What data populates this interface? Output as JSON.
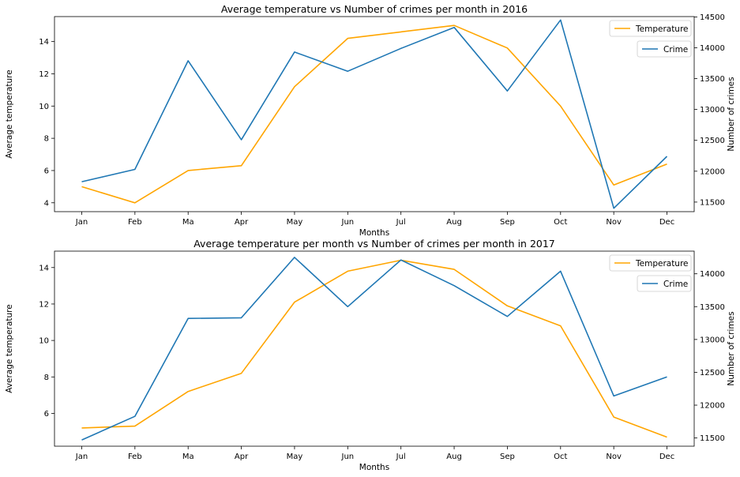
{
  "chart_data": [
    {
      "type": "line",
      "title": "Average temperature vs Number of crimes per month in 2016",
      "xlabel": "Months",
      "ylabel_left": "Average temperature",
      "ylabel_right": "Number of crimes",
      "categories": [
        "Jan",
        "Feb",
        "Ma",
        "Apr",
        "May",
        "Jun",
        "Jul",
        "Aug",
        "Sep",
        "Oct",
        "Nov",
        "Dec"
      ],
      "series": [
        {
          "name": "Temperature",
          "axis": "left",
          "color": "#ffa500",
          "values": [
            5.0,
            4.0,
            6.0,
            6.3,
            11.2,
            14.2,
            14.6,
            15.0,
            13.6,
            10.0,
            5.1,
            6.4
          ]
        },
        {
          "name": "Crime",
          "axis": "right",
          "color": "#1f77b4",
          "values": [
            11830,
            12030,
            13790,
            12510,
            13930,
            13620,
            13990,
            14330,
            13300,
            14450,
            11400,
            12240
          ]
        }
      ],
      "ylim_left": [
        3.45,
        15.55
      ],
      "yticks_left": [
        4,
        6,
        8,
        10,
        12,
        14
      ],
      "ylim_right": [
        11345,
        14505
      ],
      "yticks_right": [
        11500,
        12000,
        12500,
        13000,
        13500,
        14000,
        14500
      ],
      "legend_placement": "top-right",
      "grid": false
    },
    {
      "type": "line",
      "title": "Average temperature per month vs Number of crimes per month in 2017",
      "xlabel": "Months",
      "ylabel_left": "Average temperature",
      "ylabel_right": "Number of crimes",
      "categories": [
        "Jan",
        "Feb",
        "Ma",
        "Apr",
        "May",
        "Jun",
        "Jul",
        "Aug",
        "Sep",
        "Oct",
        "Nov",
        "Dec"
      ],
      "series": [
        {
          "name": "Temperature",
          "axis": "left",
          "color": "#ffa500",
          "values": [
            5.2,
            5.3,
            7.2,
            8.2,
            12.1,
            13.8,
            14.4,
            13.9,
            11.9,
            10.8,
            5.8,
            4.7
          ]
        },
        {
          "name": "Crime",
          "axis": "right",
          "color": "#1f77b4",
          "values": [
            11470,
            11830,
            13320,
            13330,
            14250,
            13500,
            14210,
            13820,
            13350,
            14040,
            12140,
            12430
          ]
        }
      ],
      "ylim_left": [
        4.2,
        14.9
      ],
      "yticks_left": [
        6,
        8,
        10,
        12,
        14
      ],
      "ylim_right": [
        11375,
        14345
      ],
      "yticks_right": [
        11500,
        12000,
        12500,
        13000,
        13500,
        14000
      ],
      "legend_placement": "top-right",
      "grid": false
    }
  ]
}
